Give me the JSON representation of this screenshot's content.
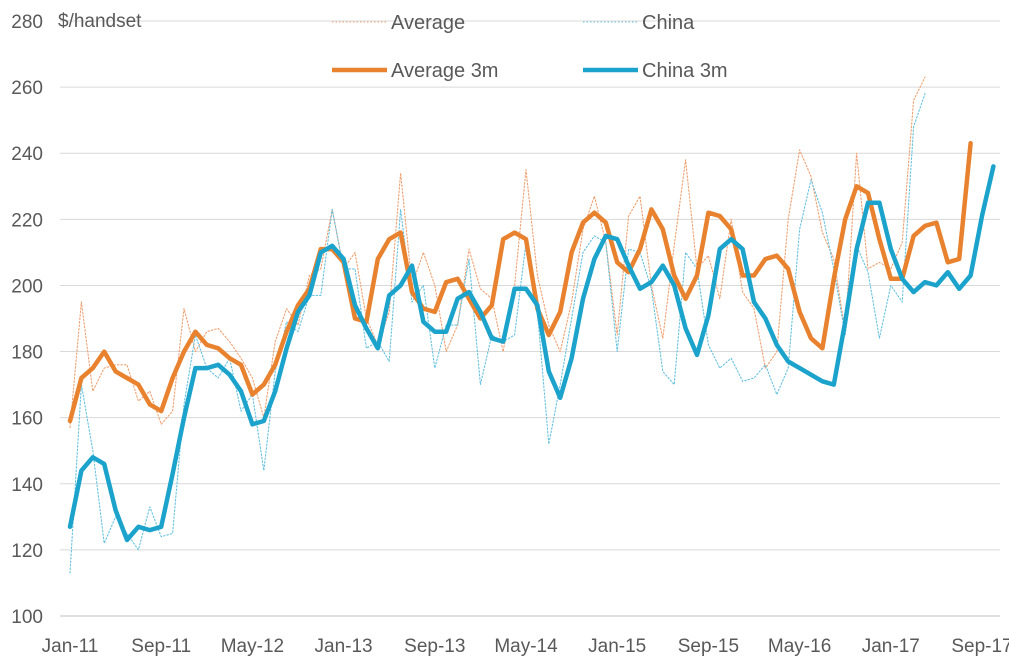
{
  "chart_data": {
    "type": "line",
    "ylabel": "$/handset",
    "ylim": [
      100,
      280
    ],
    "yticks": [
      100,
      120,
      140,
      160,
      180,
      200,
      220,
      240,
      260,
      280
    ],
    "xtick_labels": [
      "Jan-11",
      "Sep-11",
      "May-12",
      "Jan-13",
      "Sep-13",
      "May-14",
      "Jan-15",
      "Sep-15",
      "May-16",
      "Jan-17",
      "Sep-17"
    ],
    "x_start": "Jan-11",
    "x_end": "Oct-17",
    "grid": "horizontal",
    "legend_position": "top",
    "series": [
      {
        "name": "Average",
        "color": "#f0a070",
        "style": "dotted",
        "values": [
          157,
          195,
          168,
          175,
          176,
          176,
          165,
          168,
          158,
          162,
          193,
          180,
          186,
          187,
          183,
          178,
          172,
          160,
          183,
          193,
          188,
          203,
          205,
          223,
          205,
          210,
          190,
          182,
          192,
          234,
          200,
          210,
          200,
          180,
          188,
          211,
          199,
          196,
          180,
          200,
          235,
          203,
          188,
          180,
          195,
          217,
          227,
          213,
          185,
          221,
          227,
          200,
          184,
          212,
          238,
          205,
          209,
          196,
          220,
          198,
          193,
          175,
          180,
          220,
          241,
          233,
          216,
          208,
          186,
          240,
          205,
          207,
          205,
          213,
          256,
          263
        ]
      },
      {
        "name": "China",
        "color": "#66c2e0",
        "style": "dotted",
        "values": [
          113,
          170,
          150,
          122,
          130,
          125,
          120,
          133,
          124,
          125,
          164,
          185,
          175,
          172,
          178,
          162,
          167,
          144,
          174,
          189,
          186,
          197,
          197,
          223,
          205,
          205,
          181,
          183,
          177,
          223,
          195,
          200,
          175,
          188,
          188,
          208,
          170,
          185,
          183,
          185,
          213,
          192,
          152,
          170,
          190,
          210,
          215,
          213,
          180,
          211,
          210,
          199,
          174,
          170,
          210,
          205,
          182,
          175,
          178,
          171,
          172,
          176,
          167,
          175,
          217,
          232,
          222,
          205,
          185,
          212,
          204,
          184,
          200,
          195,
          248,
          258
        ]
      },
      {
        "name": "Average 3m",
        "color": "#e8822e",
        "style": "solid",
        "values": [
          159,
          172,
          175,
          180,
          174,
          172,
          170,
          164,
          162,
          172,
          180,
          186,
          182,
          181,
          178,
          176,
          167,
          170,
          176,
          186,
          194,
          199,
          211,
          211,
          207,
          190,
          189,
          208,
          214,
          216,
          198,
          193,
          192,
          201,
          202,
          196,
          190,
          194,
          214,
          216,
          214,
          193,
          185,
          192,
          210,
          219,
          222,
          219,
          207,
          204,
          211,
          223,
          217,
          203,
          196,
          203,
          222,
          221,
          217,
          203,
          203,
          208,
          209,
          205,
          192,
          184,
          181,
          202,
          220,
          230,
          228,
          214,
          202,
          202,
          215,
          218,
          219,
          207,
          208,
          243
        ]
      },
      {
        "name": "China 3m",
        "color": "#1ba3cc",
        "style": "solid",
        "values": [
          127,
          144,
          148,
          146,
          132,
          123,
          127,
          126,
          127,
          143,
          160,
          175,
          175,
          176,
          173,
          168,
          158,
          159,
          168,
          181,
          192,
          197,
          210,
          212,
          208,
          194,
          187,
          181,
          197,
          200,
          206,
          189,
          186,
          186,
          196,
          198,
          192,
          184,
          183,
          199,
          199,
          194,
          174,
          166,
          178,
          196,
          208,
          215,
          214,
          206,
          199,
          201,
          206,
          200,
          187,
          179,
          191,
          211,
          214,
          211,
          195,
          190,
          182,
          177,
          175,
          173,
          171,
          170,
          189,
          211,
          225,
          225,
          211,
          202,
          198,
          201,
          200,
          204,
          199,
          203,
          221,
          236
        ]
      }
    ]
  }
}
